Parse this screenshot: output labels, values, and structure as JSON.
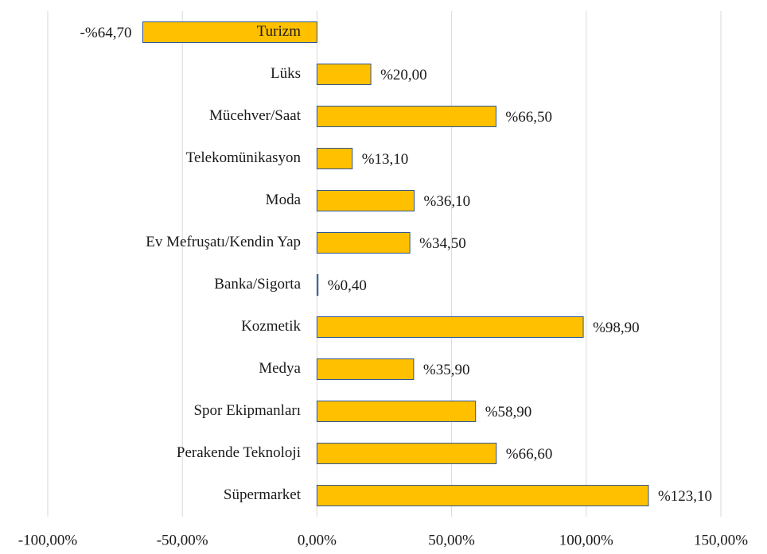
{
  "chart_data": {
    "type": "barh",
    "categories": [
      "Turizm",
      "Lüks",
      "Mücehver/Saat",
      "Telekomünikasyon",
      "Moda",
      "Ev Mefruşatı/Kendin Yap",
      "Banka/Sigorta",
      "Kozmetik",
      "Medya",
      "Spor Ekipmanları",
      "Perakende Teknoloji",
      "Süpermarket"
    ],
    "values": [
      -64.7,
      20.0,
      66.5,
      13.1,
      36.1,
      34.5,
      0.4,
      98.9,
      35.9,
      58.9,
      66.6,
      123.1
    ],
    "value_labels": [
      "-%64,70",
      "%20,00",
      "%66,50",
      "%13,10",
      "%36,10",
      "%34,50",
      "%0,40",
      "%98,90",
      "%35,90",
      "%58,90",
      "%66,60",
      "%123,10"
    ],
    "color": "#ffc000",
    "xlim": [
      -100,
      150
    ],
    "xticks": [
      {
        "value": -100,
        "label": "-100,00%"
      },
      {
        "value": -50,
        "label": "-50,00%"
      },
      {
        "value": 0,
        "label": "0,00%"
      },
      {
        "value": 50,
        "label": "50,00%"
      },
      {
        "value": 100,
        "label": "100,00%"
      },
      {
        "value": 150,
        "label": "150,00%"
      }
    ],
    "grid": true
  }
}
